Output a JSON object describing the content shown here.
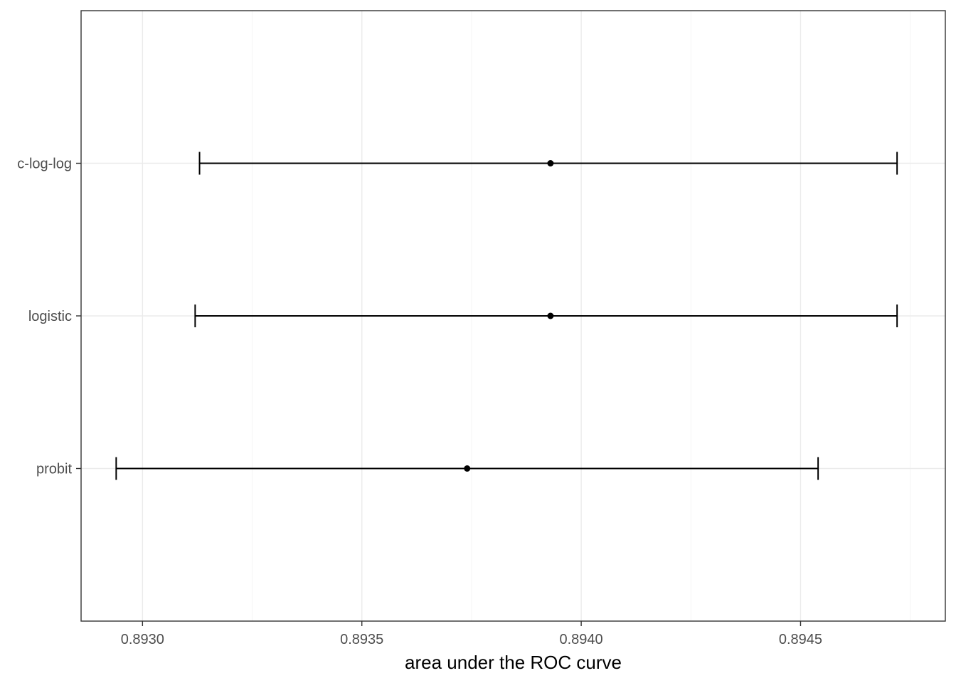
{
  "chart_data": {
    "type": "errorbar",
    "title": "",
    "xlabel": "area under the ROC curve",
    "ylabel": "",
    "xlim": [
      0.89286,
      0.89483
    ],
    "x_ticks": [
      0.893,
      0.8935,
      0.894,
      0.8945
    ],
    "x_tick_labels": [
      "0.8930",
      "0.8935",
      "0.8940",
      "0.8945"
    ],
    "x_minor_ticks": [
      0.89325,
      0.89375,
      0.89425,
      0.89475
    ],
    "categories": [
      "probit",
      "logistic",
      "c-log-log"
    ],
    "points": [
      {
        "category": "probit",
        "estimate": 0.89374,
        "lower": 0.89294,
        "upper": 0.89454
      },
      {
        "category": "logistic",
        "estimate": 0.89393,
        "lower": 0.89312,
        "upper": 0.89472
      },
      {
        "category": "c-log-log",
        "estimate": 0.89393,
        "lower": 0.89313,
        "upper": 0.89472
      }
    ],
    "grid": true,
    "legend": "none",
    "colors": {
      "marks": "#000000",
      "grid_major": "#ebebeb",
      "grid_minor": "#f5f5f5",
      "panel_border": "#333333",
      "tick_text": "#4d4d4d"
    }
  }
}
